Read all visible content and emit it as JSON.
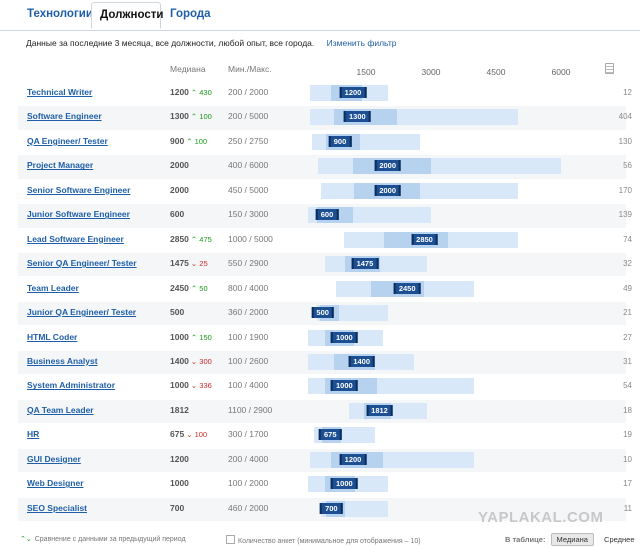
{
  "tabs": [
    {
      "label": "Технологии",
      "active": false
    },
    {
      "label": "Должности",
      "active": true
    },
    {
      "label": "Города",
      "active": false
    }
  ],
  "filter": {
    "text": "Данные за последние 3 месяца, все должности, любой опыт, все города.",
    "link": "Изменить фильтр"
  },
  "columns": {
    "median": "Медиана",
    "range": "Мин./Макс."
  },
  "axis": {
    "ticks": [
      "1500",
      "3000",
      "4500",
      "6000"
    ]
  },
  "rows": [
    {
      "title": "Technical Writer",
      "median": "1200",
      "change": "430",
      "dir": "up",
      "range": "200 / 2000",
      "count": "12"
    },
    {
      "title": "Software Engineer",
      "median": "1300",
      "change": "100",
      "dir": "up",
      "range": "200 / 5000",
      "count": "404"
    },
    {
      "title": "QA Engineer/ Tester",
      "median": "900",
      "change": "100",
      "dir": "up",
      "range": "250 / 2750",
      "count": "130"
    },
    {
      "title": "Project Manager",
      "median": "2000",
      "change": "",
      "dir": "",
      "range": "400 / 6000",
      "count": "56"
    },
    {
      "title": "Senior Software Engineer",
      "median": "2000",
      "change": "",
      "dir": "",
      "range": "450 / 5000",
      "count": "170"
    },
    {
      "title": "Junior Software Engineer",
      "median": "600",
      "change": "",
      "dir": "",
      "range": "150 / 3000",
      "count": "139"
    },
    {
      "title": "Lead Software Engineer",
      "median": "2850",
      "change": "475",
      "dir": "up",
      "range": "1000 / 5000",
      "count": "74"
    },
    {
      "title": "Senior QA Engineer/ Tester",
      "median": "1475",
      "change": "25",
      "dir": "down",
      "range": "550 / 2900",
      "count": "32"
    },
    {
      "title": "Team Leader",
      "median": "2450",
      "change": "50",
      "dir": "up",
      "range": "800 / 4000",
      "count": "49"
    },
    {
      "title": "Junior QA Engineer/ Tester",
      "median": "500",
      "change": "",
      "dir": "",
      "range": "360 / 2000",
      "count": "21"
    },
    {
      "title": "HTML Coder",
      "median": "1000",
      "change": "150",
      "dir": "up",
      "range": "100 / 1900",
      "count": "27"
    },
    {
      "title": "Business Analyst",
      "median": "1400",
      "change": "300",
      "dir": "down",
      "range": "100 / 2600",
      "count": "31"
    },
    {
      "title": "System Administrator",
      "median": "1000",
      "change": "336",
      "dir": "down",
      "range": "100 / 4000",
      "count": "54"
    },
    {
      "title": "QA Team Leader",
      "median": "1812",
      "change": "",
      "dir": "",
      "range": "1100 / 2900",
      "count": "18"
    },
    {
      "title": "HR",
      "median": "675",
      "change": "100",
      "dir": "down",
      "range": "300 / 1700",
      "count": "19"
    },
    {
      "title": "GUI Designer",
      "median": "1200",
      "change": "",
      "dir": "",
      "range": "200 / 4000",
      "count": "10"
    },
    {
      "title": "Web Designer",
      "median": "1000",
      "change": "",
      "dir": "",
      "range": "100 / 2000",
      "count": "17"
    },
    {
      "title": "SEO Specialist",
      "median": "700",
      "change": "",
      "dir": "",
      "range": "460 / 2000",
      "count": "11"
    }
  ],
  "footer": {
    "compare": "Сравнение с данными за предыдущий период",
    "count_note": "Количество анкет (минимальное для отображения – 10)",
    "table_label": "В таблице:",
    "btn_median": "Медиана",
    "btn_mean": "Среднее"
  },
  "watermark": "YAPLAKAL.COM",
  "colors": {
    "link": "#1f5fa8",
    "badge": "#1d4f93",
    "bar_light": "#d8e8f8",
    "bar_mid": "#b7d2ee",
    "up": "#1a9a1a",
    "down": "#cc2a2a"
  }
}
